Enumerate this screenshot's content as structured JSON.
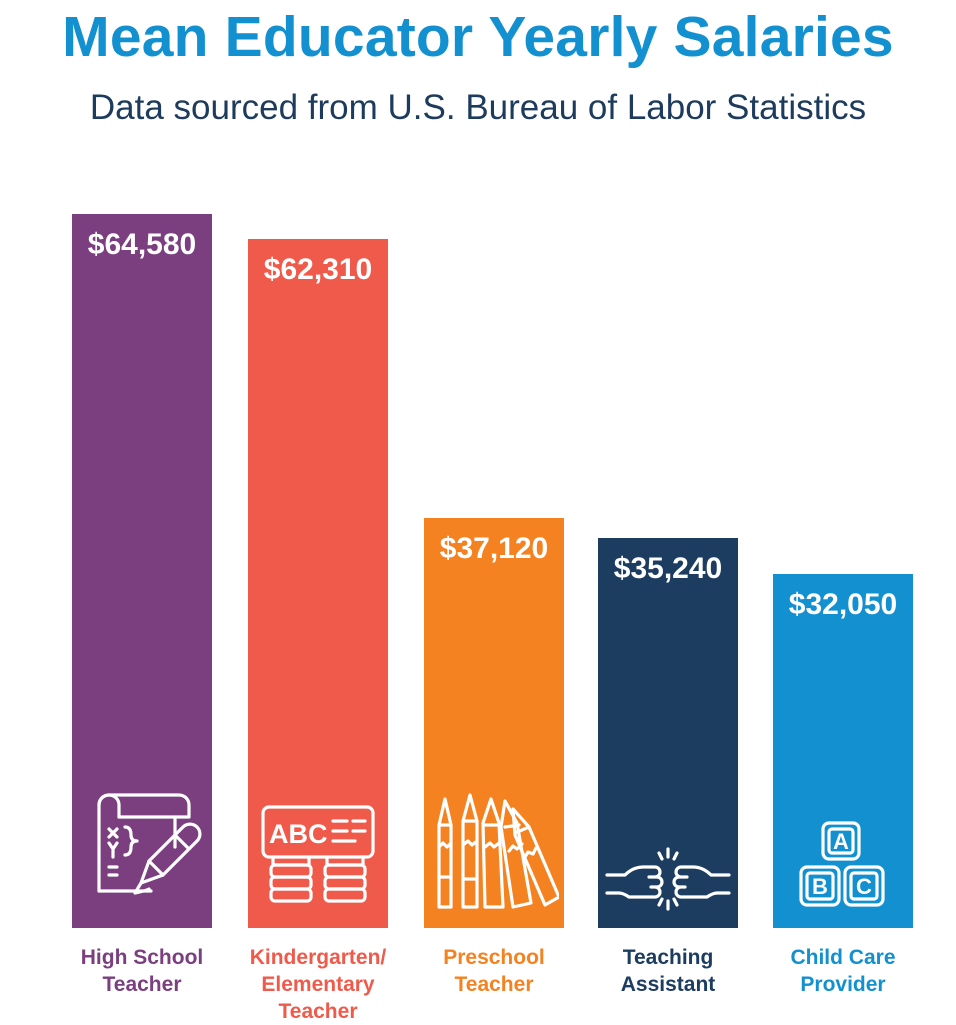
{
  "chart_data": {
    "type": "bar",
    "title": "Mean Educator Yearly Salaries",
    "subtitle": "Data sourced from U.S. Bureau of Labor Statistics",
    "xlabel": "",
    "ylabel": "",
    "categories": [
      "High School\nTeacher",
      "Kindergarten/\nElementary\nTeacher",
      "Preschool\nTeacher",
      "Teaching\nAssistant",
      "Child Care\nProvider"
    ],
    "values": [
      64580,
      62310,
      37120,
      35240,
      32050
    ],
    "value_labels": [
      "$64,580",
      "$62,310",
      "$37,120",
      "$35,240",
      "$32,050"
    ],
    "colors": [
      "#7b3f80",
      "#f05a4a",
      "#f58220",
      "#1c3c60",
      "#1390cf"
    ],
    "icons": [
      "math-worksheet-icon",
      "abc-book-icon",
      "crayons-icon",
      "fist-bump-icon",
      "abc-blocks-icon"
    ],
    "icon_text": {
      "abc_book": "ABC",
      "block_a": "A",
      "block_b": "B",
      "block_c": "C"
    },
    "grid": false,
    "legend": "none"
  }
}
